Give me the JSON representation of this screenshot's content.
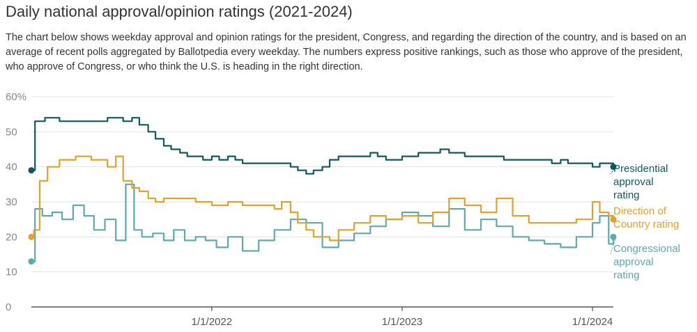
{
  "header": {
    "title": "Daily national approval/opinion ratings (2021-2024)",
    "description": "The chart below shows weekday approval and opinion ratings for the president, Congress, and regarding the direction of the country, and is based on an average of recent polls aggregated by Ballotpedia every weekday. The numbers express positive rankings, such as those who approve of the president, who approve of Congress, or who think the U.S. is heading in the right direction."
  },
  "chart_data": {
    "type": "line",
    "title": "Daily national approval/opinion ratings (2021-2024)",
    "xlabel": "",
    "ylabel": "",
    "ylim": [
      0,
      60
    ],
    "xlim": [
      "2021-01-20",
      "2024-02-10"
    ],
    "y_ticks": [
      "0",
      "10",
      "20",
      "30",
      "40",
      "50",
      "60%"
    ],
    "y_tick_values": [
      0,
      10,
      20,
      30,
      40,
      50,
      60
    ],
    "x_ticks": [
      {
        "date": "2022-01-01",
        "label": "1/1/2022"
      },
      {
        "date": "2023-01-01",
        "label": "1/1/2023"
      },
      {
        "date": "2024-01-01",
        "label": "1/1/2024"
      }
    ],
    "grid": true,
    "legend": "direct labels at right end of lines",
    "series": [
      {
        "name": "Presidential approval rating",
        "label_lines": [
          "Presidential",
          "approval",
          "rating"
        ],
        "color": "#0d5a5e",
        "x": [
          "2021-01-20",
          "2021-01-27",
          "2021-02-15",
          "2021-03-15",
          "2021-04-15",
          "2021-05-15",
          "2021-06-15",
          "2021-07-15",
          "2021-08-01",
          "2021-08-15",
          "2021-09-01",
          "2021-09-15",
          "2021-10-01",
          "2021-10-15",
          "2021-11-01",
          "2021-11-15",
          "2021-12-01",
          "2021-12-15",
          "2022-01-01",
          "2022-01-15",
          "2022-02-01",
          "2022-02-15",
          "2022-03-01",
          "2022-03-15",
          "2022-04-01",
          "2022-04-15",
          "2022-05-01",
          "2022-05-15",
          "2022-06-01",
          "2022-06-15",
          "2022-07-01",
          "2022-07-15",
          "2022-08-01",
          "2022-08-15",
          "2022-09-01",
          "2022-09-15",
          "2022-10-01",
          "2022-10-15",
          "2022-11-01",
          "2022-11-15",
          "2022-12-01",
          "2022-12-15",
          "2023-01-01",
          "2023-01-15",
          "2023-02-01",
          "2023-02-15",
          "2023-03-01",
          "2023-03-15",
          "2023-04-01",
          "2023-04-15",
          "2023-05-01",
          "2023-05-15",
          "2023-06-01",
          "2023-06-15",
          "2023-07-01",
          "2023-07-15",
          "2023-08-01",
          "2023-08-15",
          "2023-09-01",
          "2023-09-15",
          "2023-10-01",
          "2023-10-15",
          "2023-11-01",
          "2023-11-15",
          "2023-12-01",
          "2023-12-15",
          "2024-01-01",
          "2024-01-15",
          "2024-02-01",
          "2024-02-10"
        ],
        "values": [
          39,
          53,
          54,
          53,
          53,
          53,
          54,
          53,
          54,
          52,
          50,
          48,
          46,
          45,
          44,
          43,
          43,
          42,
          43,
          42,
          43,
          42,
          41,
          41,
          41,
          41,
          41,
          41,
          40,
          39,
          38,
          39,
          40,
          42,
          43,
          43,
          43,
          43,
          44,
          43,
          42,
          42,
          43,
          43,
          44,
          44,
          44,
          45,
          44,
          44,
          43,
          43,
          43,
          43,
          43,
          42,
          42,
          42,
          42,
          42,
          42,
          41,
          42,
          41,
          41,
          41,
          40,
          41,
          41,
          40
        ]
      },
      {
        "name": "Direction of Country rating",
        "label_lines": [
          "Direction of",
          "Country rating"
        ],
        "color": "#e5a126",
        "x": [
          "2021-01-20",
          "2021-01-25",
          "2021-02-05",
          "2021-02-20",
          "2021-03-15",
          "2021-04-15",
          "2021-05-15",
          "2021-06-15",
          "2021-07-01",
          "2021-07-15",
          "2021-08-01",
          "2021-08-15",
          "2021-09-01",
          "2021-09-15",
          "2021-10-01",
          "2021-11-01",
          "2021-12-01",
          "2022-01-01",
          "2022-02-01",
          "2022-03-01",
          "2022-04-01",
          "2022-05-01",
          "2022-05-15",
          "2022-06-01",
          "2022-06-15",
          "2022-07-01",
          "2022-07-15",
          "2022-08-01",
          "2022-08-15",
          "2022-09-01",
          "2022-10-01",
          "2022-11-01",
          "2022-12-01",
          "2023-01-01",
          "2023-02-01",
          "2023-03-01",
          "2023-04-01",
          "2023-05-01",
          "2023-06-01",
          "2023-07-01",
          "2023-08-01",
          "2023-09-01",
          "2023-10-01",
          "2023-11-01",
          "2023-12-01",
          "2024-01-01",
          "2024-01-15",
          "2024-02-01",
          "2024-02-10"
        ],
        "values": [
          20,
          22,
          36,
          40,
          42,
          43,
          42,
          40,
          43,
          36,
          34,
          33,
          31,
          30,
          31,
          31,
          30,
          29,
          30,
          29,
          29,
          28,
          30,
          27,
          24,
          22,
          20,
          20,
          19,
          22,
          24,
          26,
          25,
          26,
          24,
          27,
          31,
          29,
          27,
          31,
          26,
          24,
          24,
          24,
          25,
          30,
          27,
          26,
          25
        ]
      },
      {
        "name": "Congressional approval rating",
        "label_lines": [
          "Congressional",
          "approval",
          "rating"
        ],
        "color": "#5aaab0",
        "x": [
          "2021-01-20",
          "2021-01-27",
          "2021-02-10",
          "2021-03-01",
          "2021-03-20",
          "2021-04-10",
          "2021-05-01",
          "2021-05-20",
          "2021-06-10",
          "2021-07-01",
          "2021-07-20",
          "2021-08-05",
          "2021-08-20",
          "2021-09-10",
          "2021-10-01",
          "2021-10-20",
          "2021-11-10",
          "2021-12-01",
          "2021-12-20",
          "2022-01-10",
          "2022-02-01",
          "2022-03-01",
          "2022-04-01",
          "2022-05-01",
          "2022-06-01",
          "2022-07-01",
          "2022-08-01",
          "2022-09-01",
          "2022-10-01",
          "2022-11-01",
          "2022-12-01",
          "2023-01-01",
          "2023-02-01",
          "2023-03-01",
          "2023-04-01",
          "2023-05-01",
          "2023-06-01",
          "2023-07-01",
          "2023-08-01",
          "2023-09-01",
          "2023-10-01",
          "2023-11-01",
          "2023-12-01",
          "2024-01-01",
          "2024-01-15",
          "2024-02-01",
          "2024-02-10"
        ],
        "values": [
          13,
          28,
          26,
          27,
          25,
          29,
          26,
          22,
          25,
          19,
          35,
          22,
          20,
          21,
          19,
          22,
          19,
          20,
          19,
          17,
          20,
          16,
          19,
          22,
          25,
          24,
          17,
          19,
          21,
          23,
          25,
          27,
          26,
          23,
          28,
          22,
          25,
          23,
          20,
          19,
          18,
          17,
          20,
          24,
          26,
          18,
          20
        ]
      }
    ]
  }
}
